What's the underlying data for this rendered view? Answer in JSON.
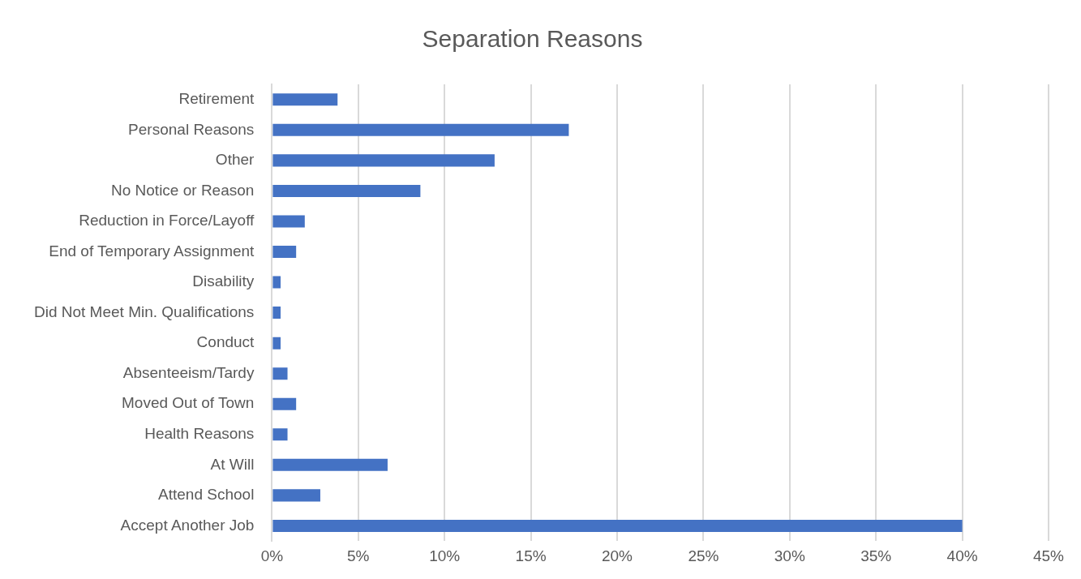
{
  "chart_data": {
    "type": "bar",
    "title": "Separation Reasons",
    "orientation": "horizontal",
    "categories": [
      "Retirement",
      "Personal Reasons",
      "Other",
      "No Notice or Reason",
      "Reduction in Force/Layoff",
      "End of Temporary Assignment",
      "Disability",
      "Did Not Meet Min. Qualifications",
      "Conduct",
      "Absenteeism/Tardy",
      "Moved Out of Town",
      "Health Reasons",
      "At Will",
      "Attend School",
      "Accept Another Job"
    ],
    "values": [
      3.8,
      17.2,
      12.9,
      8.6,
      1.9,
      1.4,
      0.5,
      0.5,
      0.5,
      0.9,
      1.4,
      0.9,
      6.7,
      2.8,
      40
    ],
    "color": "#4472c4",
    "xlim": [
      0,
      45
    ],
    "xticks": [
      {
        "value": 0,
        "label": "0%"
      },
      {
        "value": 5,
        "label": "5%"
      },
      {
        "value": 10,
        "label": "10%"
      },
      {
        "value": 15,
        "label": "15%"
      },
      {
        "value": 20,
        "label": "20%"
      },
      {
        "value": 25,
        "label": "25%"
      },
      {
        "value": 30,
        "label": "30%"
      },
      {
        "value": 35,
        "label": "35%"
      },
      {
        "value": 40,
        "label": "40%"
      },
      {
        "value": 45,
        "label": "45%"
      }
    ],
    "grid": "x",
    "legend": false
  }
}
